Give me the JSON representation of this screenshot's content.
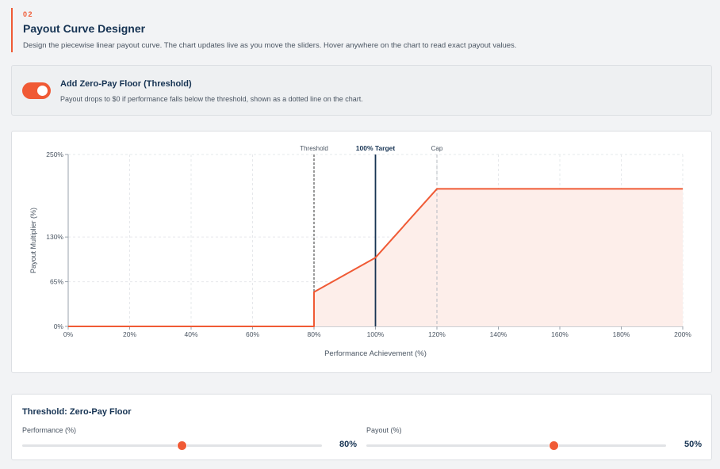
{
  "header": {
    "step": "02",
    "title": "Payout Curve Designer",
    "description": "Design the piecewise linear payout curve. The chart updates live as you move the sliders. Hover anywhere on the chart to read exact payout values."
  },
  "floor_toggle": {
    "enabled": true,
    "title": "Add Zero-Pay Floor (Threshold)",
    "description": "Payout drops to $0 if performance falls below the threshold, shown as a dotted line on the chart."
  },
  "colors": {
    "accent": "#f05a35",
    "navy": "#163353",
    "fill": "#fdeeea"
  },
  "chart_data": {
    "type": "line",
    "xlabel": "Performance Achievement (%)",
    "ylabel": "Payout Multiplier (%)",
    "xlim": [
      0,
      200
    ],
    "ylim": [
      0,
      250
    ],
    "x_ticks": [
      0,
      20,
      40,
      60,
      80,
      100,
      120,
      140,
      160,
      180,
      200
    ],
    "x_tick_labels": [
      "0%",
      "20%",
      "40%",
      "60%",
      "80%",
      "100%",
      "120%",
      "140%",
      "160%",
      "180%",
      "200%"
    ],
    "y_ticks": [
      0,
      65,
      130,
      250
    ],
    "y_tick_labels": [
      "0%",
      "65%",
      "130%",
      "250%"
    ],
    "grid": true,
    "markers": [
      {
        "label": "Threshold",
        "x": 80,
        "style": "dashed"
      },
      {
        "label": "100% Target",
        "x": 100,
        "style": "solid"
      },
      {
        "label": "Cap",
        "x": 120,
        "style": "dashed-light"
      }
    ],
    "series": [
      {
        "x": [
          0,
          80,
          80,
          100,
          120,
          200
        ],
        "y": [
          0,
          0,
          50,
          100,
          200,
          200
        ]
      }
    ]
  },
  "threshold_panel": {
    "title": "Threshold: Zero-Pay Floor",
    "performance": {
      "label": "Performance (%)",
      "value": 80,
      "min": 0,
      "max": 150,
      "display": "80%"
    },
    "payout": {
      "label": "Payout (%)",
      "value": 50,
      "min": 0,
      "max": 80,
      "display": "50%"
    }
  }
}
